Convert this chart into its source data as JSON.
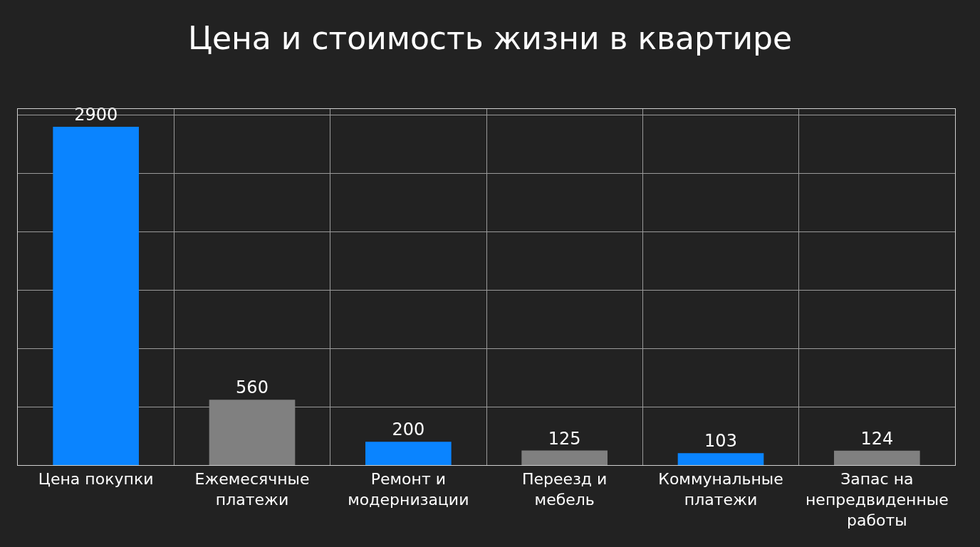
{
  "chart_data": {
    "type": "bar",
    "title": "Цена и стоимость жизни в квартире",
    "categories": [
      "Цена покупки",
      "Ежемесячные платежи",
      "Ремонт и модернизации",
      "Переезд и мебель",
      "Коммунальные платежи",
      "Запас на непредвиденные работы"
    ],
    "values": [
      2900,
      560,
      200,
      125,
      103,
      124
    ],
    "data_labels": true,
    "colors": [
      "#0a84ff",
      "#808080",
      "#0a84ff",
      "#808080",
      "#0a84ff",
      "#808080"
    ],
    "tick_labels": "x",
    "grid": true
  }
}
